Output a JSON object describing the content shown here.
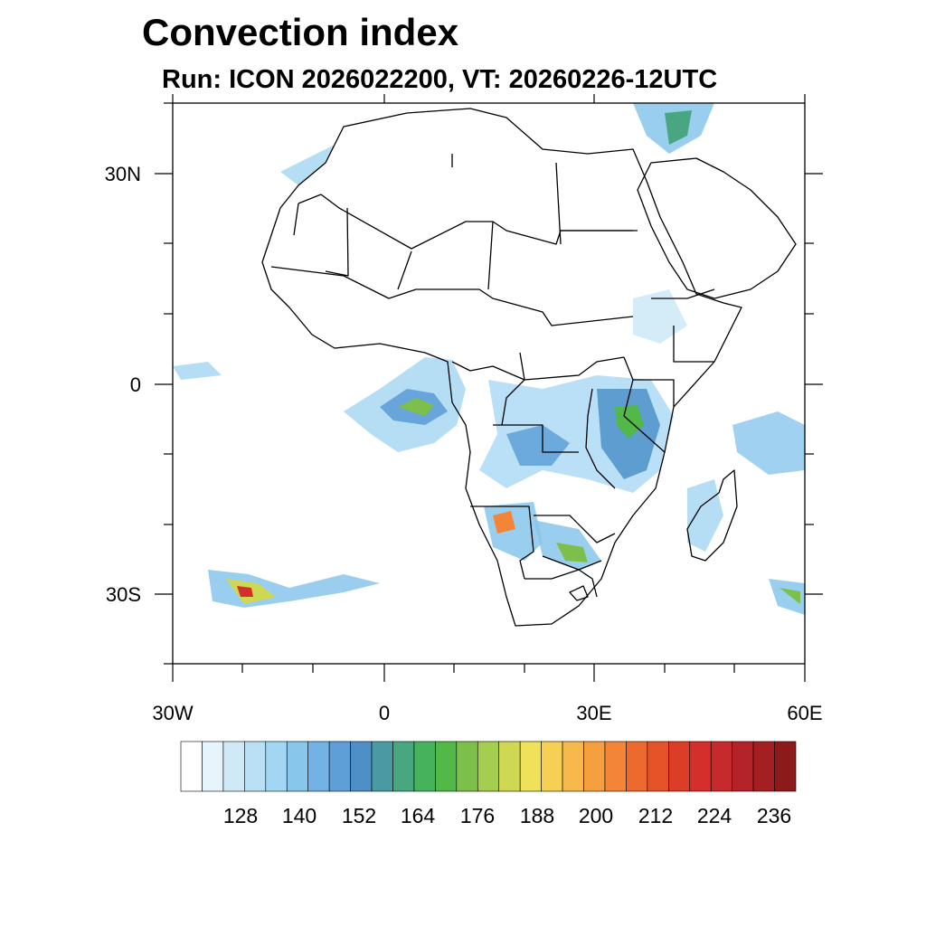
{
  "title": "Convection index",
  "subtitle": "Run: ICON 2026022200,  VT: 20260226-12UTC",
  "map": {
    "region": "Africa",
    "lat_ticks": [
      "30N",
      "0",
      "30S"
    ],
    "lon_ticks": [
      "30W",
      "0",
      "30E",
      "60E"
    ]
  },
  "colorbar": {
    "colors": [
      "#ffffff",
      "#e6f4fc",
      "#cfe9f7",
      "#b9e0f5",
      "#a2d6f3",
      "#88c6ec",
      "#72b2e4",
      "#5e9fd8",
      "#4d90c8",
      "#4a9aa4",
      "#48a780",
      "#46b25c",
      "#52b848",
      "#7cc04b",
      "#a5cd4f",
      "#cfd853",
      "#efe15a",
      "#f6cf55",
      "#f7b94c",
      "#f59f3f",
      "#f28537",
      "#ed6a2f",
      "#e55328",
      "#dc3d26",
      "#d52f2b",
      "#c72a2c",
      "#b5232a",
      "#a31f22",
      "#8d1a1a"
    ],
    "labels": [
      "128",
      "140",
      "152",
      "164",
      "176",
      "188",
      "200",
      "212",
      "224",
      "236"
    ]
  }
}
